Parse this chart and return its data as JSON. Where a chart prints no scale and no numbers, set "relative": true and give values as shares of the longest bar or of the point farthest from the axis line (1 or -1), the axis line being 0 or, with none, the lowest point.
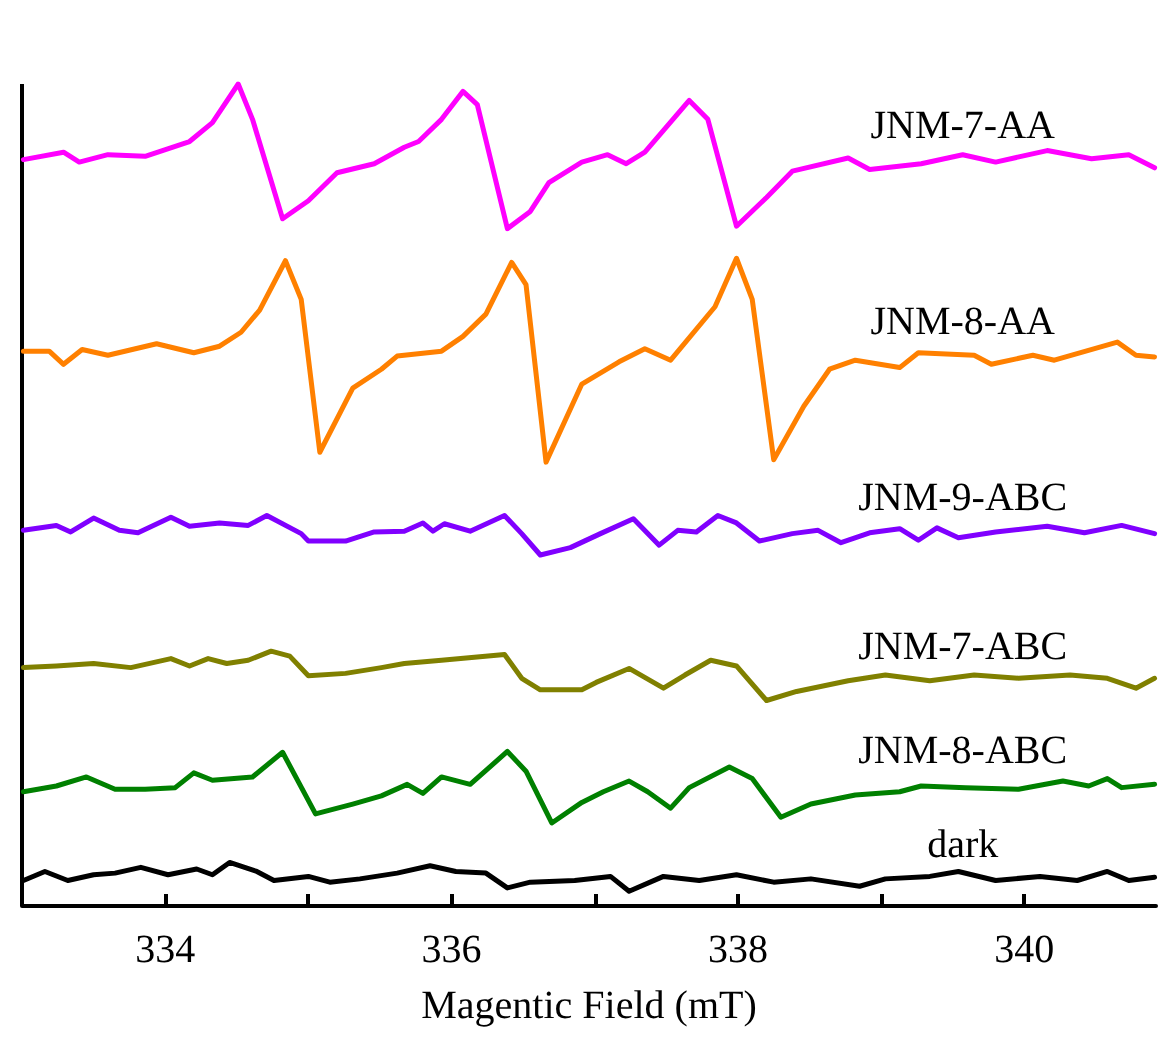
{
  "chart_data": {
    "type": "line",
    "xlabel": "Magentic Field (mT)",
    "relative": true,
    "xlim": [
      333,
      340.92
    ],
    "xticks": [
      334,
      {
        "value": 335,
        "label": null
      },
      336,
      {
        "value": 337,
        "label": null
      },
      338,
      {
        "value": 339,
        "label": null
      },
      340
    ],
    "tick_labels": "x",
    "grid": false,
    "legend": false,
    "marker": "none",
    "line_style": "solid",
    "series": [
      {
        "name": "JNM-7-AA",
        "color": "#ff00ff",
        "x": [
          333.01,
          333.29,
          333.4,
          333.6,
          333.86,
          334.17,
          334.33,
          334.51,
          334.61,
          334.82,
          335.0,
          335.2,
          335.46,
          335.67,
          335.77,
          335.93,
          336.08,
          336.18,
          336.39,
          336.55,
          336.68,
          336.91,
          337.09,
          337.22,
          337.35,
          337.66,
          337.79,
          337.99,
          338.2,
          338.38,
          338.77,
          338.92,
          339.28,
          339.57,
          339.8,
          340.16,
          340.47,
          340.73,
          340.91
        ],
        "values": [
          0.908,
          0.917,
          0.905,
          0.914,
          0.912,
          0.93,
          0.953,
          1.0,
          0.957,
          0.836,
          0.858,
          0.892,
          0.903,
          0.923,
          0.93,
          0.957,
          0.991,
          0.975,
          0.824,
          0.845,
          0.88,
          0.905,
          0.914,
          0.903,
          0.917,
          0.98,
          0.957,
          0.827,
          0.862,
          0.894,
          0.91,
          0.896,
          0.903,
          0.914,
          0.905,
          0.919,
          0.909,
          0.914,
          0.898
        ]
      },
      {
        "name": "JNM-8-AA",
        "color": "#ff8000",
        "x": [
          333.01,
          333.19,
          333.29,
          333.42,
          333.6,
          333.94,
          334.2,
          334.38,
          334.53,
          334.66,
          334.84,
          334.95,
          335.08,
          335.31,
          335.51,
          335.62,
          335.93,
          336.08,
          336.24,
          336.42,
          336.52,
          336.66,
          336.91,
          337.17,
          337.35,
          337.53,
          337.84,
          337.99,
          338.1,
          338.25,
          338.46,
          338.64,
          338.82,
          339.13,
          339.26,
          339.65,
          339.77,
          340.06,
          340.21,
          340.65,
          340.78,
          340.91
        ],
        "values": [
          0.675,
          0.675,
          0.659,
          0.677,
          0.67,
          0.684,
          0.673,
          0.681,
          0.698,
          0.725,
          0.785,
          0.738,
          0.552,
          0.63,
          0.653,
          0.669,
          0.675,
          0.693,
          0.72,
          0.783,
          0.756,
          0.54,
          0.635,
          0.662,
          0.678,
          0.664,
          0.729,
          0.788,
          0.738,
          0.543,
          0.608,
          0.653,
          0.664,
          0.655,
          0.673,
          0.67,
          0.659,
          0.67,
          0.664,
          0.686,
          0.67,
          0.668
        ]
      },
      {
        "name": "JNM-9-ABC",
        "color": "#8000ff",
        "x": [
          333.01,
          333.24,
          333.34,
          333.5,
          333.68,
          333.81,
          334.04,
          334.17,
          334.38,
          334.58,
          334.71,
          334.95,
          335.0,
          335.26,
          335.46,
          335.67,
          335.8,
          335.87,
          335.95,
          336.13,
          336.37,
          336.49,
          336.62,
          336.83,
          337.04,
          337.27,
          337.45,
          337.58,
          337.71,
          337.86,
          337.99,
          338.15,
          338.38,
          338.56,
          338.72,
          338.92,
          339.13,
          339.26,
          339.39,
          339.54,
          339.8,
          340.16,
          340.42,
          340.68,
          340.91
        ],
        "values": [
          0.457,
          0.463,
          0.455,
          0.472,
          0.457,
          0.454,
          0.473,
          0.462,
          0.466,
          0.463,
          0.475,
          0.453,
          0.444,
          0.444,
          0.455,
          0.456,
          0.466,
          0.456,
          0.465,
          0.456,
          0.475,
          0.453,
          0.427,
          0.436,
          0.453,
          0.471,
          0.439,
          0.457,
          0.455,
          0.475,
          0.466,
          0.444,
          0.453,
          0.457,
          0.442,
          0.454,
          0.459,
          0.445,
          0.46,
          0.448,
          0.455,
          0.462,
          0.454,
          0.463,
          0.453
        ]
      },
      {
        "name": "JNM-7-ABC",
        "color": "#808000",
        "x": [
          333.01,
          333.24,
          333.5,
          333.76,
          334.04,
          334.17,
          334.3,
          334.43,
          334.58,
          334.74,
          334.87,
          335.0,
          335.26,
          335.51,
          335.67,
          335.93,
          336.37,
          336.49,
          336.62,
          336.91,
          337.01,
          337.24,
          337.48,
          337.63,
          337.81,
          337.99,
          338.2,
          338.41,
          338.77,
          339.03,
          339.34,
          339.65,
          339.96,
          340.32,
          340.58,
          340.78,
          340.91
        ],
        "values": [
          0.29,
          0.292,
          0.295,
          0.29,
          0.301,
          0.292,
          0.301,
          0.295,
          0.299,
          0.31,
          0.304,
          0.28,
          0.283,
          0.29,
          0.295,
          0.299,
          0.306,
          0.277,
          0.263,
          0.263,
          0.272,
          0.289,
          0.265,
          0.281,
          0.299,
          0.292,
          0.25,
          0.261,
          0.274,
          0.281,
          0.274,
          0.281,
          0.277,
          0.281,
          0.277,
          0.265,
          0.277
        ]
      },
      {
        "name": "JNM-8-ABC",
        "color": "#008000",
        "x": [
          333.01,
          333.24,
          333.45,
          333.65,
          333.86,
          334.07,
          334.2,
          334.33,
          334.61,
          334.82,
          335.05,
          335.31,
          335.51,
          335.69,
          335.8,
          335.93,
          336.13,
          336.39,
          336.52,
          336.7,
          336.91,
          337.06,
          337.24,
          337.37,
          337.53,
          337.66,
          337.94,
          338.1,
          338.3,
          338.51,
          338.82,
          339.13,
          339.28,
          339.59,
          339.96,
          340.27,
          340.45,
          340.58,
          340.68,
          340.91
        ],
        "values": [
          0.139,
          0.146,
          0.157,
          0.142,
          0.142,
          0.144,
          0.162,
          0.153,
          0.157,
          0.187,
          0.112,
          0.124,
          0.134,
          0.148,
          0.137,
          0.157,
          0.148,
          0.188,
          0.164,
          0.101,
          0.126,
          0.139,
          0.152,
          0.139,
          0.119,
          0.144,
          0.169,
          0.155,
          0.108,
          0.124,
          0.135,
          0.139,
          0.146,
          0.144,
          0.142,
          0.152,
          0.146,
          0.155,
          0.144,
          0.148
        ]
      },
      {
        "name": "dark",
        "color": "#000000",
        "x": [
          333.01,
          333.16,
          333.32,
          333.5,
          333.65,
          333.83,
          334.02,
          334.22,
          334.33,
          334.45,
          334.64,
          334.76,
          335.0,
          335.15,
          335.36,
          335.62,
          335.85,
          336.03,
          336.24,
          336.39,
          336.55,
          336.86,
          337.11,
          337.24,
          337.48,
          337.73,
          337.99,
          338.25,
          338.51,
          338.85,
          339.03,
          339.34,
          339.54,
          339.8,
          340.11,
          340.37,
          340.58,
          340.73,
          340.91
        ],
        "values": [
          0.031,
          0.042,
          0.031,
          0.038,
          0.04,
          0.047,
          0.038,
          0.045,
          0.038,
          0.053,
          0.042,
          0.031,
          0.036,
          0.029,
          0.033,
          0.04,
          0.049,
          0.042,
          0.04,
          0.022,
          0.029,
          0.031,
          0.036,
          0.018,
          0.036,
          0.031,
          0.038,
          0.029,
          0.033,
          0.024,
          0.033,
          0.036,
          0.042,
          0.031,
          0.036,
          0.031,
          0.042,
          0.031,
          0.035
        ]
      }
    ]
  }
}
